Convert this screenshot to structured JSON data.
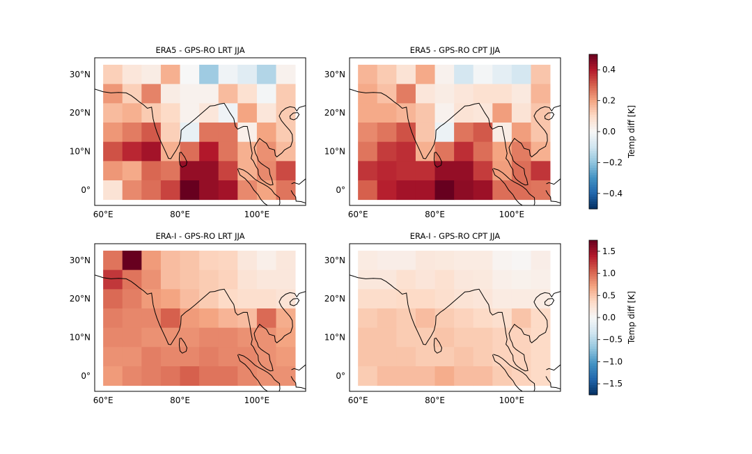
{
  "figure": {
    "colormap": [
      "#053061",
      "#2166ac",
      "#4393c3",
      "#92c5de",
      "#d1e5f0",
      "#f7f7f7",
      "#fddbc7",
      "#f4a582",
      "#d6604d",
      "#b2182b",
      "#67001f"
    ]
  },
  "chart_data": [
    {
      "type": "heatmap",
      "title": "ERA5 - GPS-RO LRT JJA",
      "x_ticks": [
        "60°E",
        "80°E",
        "100°E"
      ],
      "y_ticks": [
        "30°N",
        "20°N",
        "10°N",
        "0°"
      ],
      "x_centers_lon": [
        62.5,
        67.5,
        72.5,
        77.5,
        82.5,
        87.5,
        92.5,
        97.5,
        102.5,
        107.5
      ],
      "y_centers_lat": [
        30,
        25,
        20,
        15,
        10,
        5,
        0
      ],
      "clim": [
        -0.5,
        0.5
      ],
      "values": [
        [
          0.12,
          0.06,
          0.04,
          0.18,
          0.0,
          -0.18,
          -0.02,
          -0.06,
          -0.15,
          0.02
        ],
        [
          0.22,
          0.12,
          0.25,
          0.04,
          0.02,
          0.02,
          0.16,
          0.08,
          -0.01,
          0.13
        ],
        [
          0.16,
          0.18,
          0.13,
          0.1,
          0.02,
          0.06,
          -0.02,
          0.2,
          0.06,
          0.13
        ],
        [
          0.22,
          0.26,
          0.31,
          0.12,
          -0.04,
          0.27,
          0.27,
          0.03,
          0.2,
          0.13
        ],
        [
          0.32,
          0.38,
          0.42,
          0.18,
          0.28,
          0.4,
          0.27,
          0.18,
          0.23,
          0.16
        ],
        [
          0.22,
          0.19,
          0.29,
          0.27,
          0.44,
          0.44,
          0.34,
          0.18,
          0.24,
          0.33
        ],
        [
          0.07,
          0.24,
          0.28,
          0.34,
          0.5,
          0.44,
          0.42,
          0.24,
          0.2,
          0.27
        ]
      ]
    },
    {
      "type": "heatmap",
      "title": "ERA5 - GPS-RO CPT JJA",
      "x_ticks": [
        "60°E",
        "80°E",
        "100°E"
      ],
      "y_ticks": [
        "30°N",
        "20°N",
        "10°N",
        "0°"
      ],
      "x_centers_lon": [
        62.5,
        67.5,
        72.5,
        77.5,
        82.5,
        87.5,
        92.5,
        97.5,
        102.5,
        107.5
      ],
      "y_centers_lat": [
        30,
        25,
        20,
        15,
        10,
        5,
        0
      ],
      "clim": [
        -0.5,
        0.5
      ],
      "values": [
        [
          0.17,
          0.13,
          0.07,
          0.19,
          0.02,
          -0.09,
          -0.01,
          -0.05,
          -0.09,
          0.14
        ],
        [
          0.19,
          0.15,
          0.26,
          0.06,
          0.04,
          0.06,
          0.08,
          0.08,
          0.05,
          0.17
        ],
        [
          0.19,
          0.19,
          0.17,
          0.14,
          0.02,
          0.07,
          0.06,
          0.21,
          0.07,
          0.14
        ],
        [
          0.24,
          0.27,
          0.32,
          0.14,
          -0.03,
          0.27,
          0.31,
          0.04,
          0.21,
          0.14
        ],
        [
          0.27,
          0.35,
          0.37,
          0.18,
          0.27,
          0.37,
          0.28,
          0.2,
          0.26,
          0.18
        ],
        [
          0.36,
          0.38,
          0.37,
          0.37,
          0.44,
          0.44,
          0.35,
          0.21,
          0.28,
          0.36
        ],
        [
          0.3,
          0.39,
          0.42,
          0.42,
          0.5,
          0.45,
          0.43,
          0.28,
          0.28,
          0.27
        ]
      ]
    },
    {
      "type": "heatmap",
      "title": "ERA-I - GPS-RO LRT JJA",
      "x_ticks": [
        "60°E",
        "80°E",
        "100°E"
      ],
      "y_ticks": [
        "30°N",
        "20°N",
        "10°N",
        "0°"
      ],
      "x_centers_lon": [
        62.5,
        67.5,
        72.5,
        77.5,
        82.5,
        87.5,
        92.5,
        97.5,
        102.5,
        107.5
      ],
      "y_centers_lat": [
        30,
        25,
        20,
        15,
        10,
        5,
        0
      ],
      "clim": [
        -1.75,
        1.75
      ],
      "values": [
        [
          0.95,
          1.75,
          0.75,
          0.55,
          0.5,
          0.4,
          0.38,
          0.2,
          0.1,
          0.2
        ],
        [
          1.25,
          0.95,
          0.8,
          0.55,
          0.5,
          0.45,
          0.4,
          0.25,
          0.2,
          0.2
        ],
        [
          1.0,
          0.9,
          0.75,
          0.7,
          0.55,
          0.45,
          0.35,
          0.3,
          0.3,
          0.25
        ],
        [
          0.9,
          0.85,
          0.85,
          1.05,
          0.75,
          0.7,
          0.6,
          0.55,
          1.0,
          0.65
        ],
        [
          0.85,
          0.85,
          0.8,
          0.8,
          0.8,
          0.85,
          0.85,
          0.8,
          0.8,
          0.7
        ],
        [
          0.8,
          0.8,
          0.9,
          0.85,
          0.85,
          0.9,
          0.85,
          0.85,
          0.8,
          0.75
        ],
        [
          0.75,
          0.85,
          0.9,
          0.95,
          1.05,
          0.95,
          0.95,
          0.85,
          0.8,
          0.8
        ]
      ]
    },
    {
      "type": "heatmap",
      "title": "ERA-I - GPS-RO CPT JJA",
      "x_ticks": [
        "60°E",
        "80°E",
        "100°E"
      ],
      "y_ticks": [
        "30°N",
        "20°N",
        "10°N",
        "0°"
      ],
      "x_centers_lon": [
        62.5,
        67.5,
        72.5,
        77.5,
        82.5,
        87.5,
        92.5,
        97.5,
        102.5,
        107.5
      ],
      "y_centers_lat": [
        30,
        25,
        20,
        15,
        10,
        5,
        0
      ],
      "clim": [
        -1.75,
        1.75
      ],
      "values": [
        [
          0.15,
          0.12,
          0.12,
          0.2,
          0.18,
          0.15,
          0.15,
          0.05,
          0.02,
          0.12
        ],
        [
          0.2,
          0.2,
          0.28,
          0.22,
          0.28,
          0.2,
          0.18,
          0.1,
          0.08,
          0.1
        ],
        [
          0.32,
          0.32,
          0.35,
          0.35,
          0.3,
          0.25,
          0.22,
          0.15,
          0.15,
          0.15
        ],
        [
          0.45,
          0.5,
          0.45,
          0.55,
          0.45,
          0.4,
          0.35,
          0.3,
          0.5,
          0.35
        ],
        [
          0.5,
          0.5,
          0.45,
          0.45,
          0.5,
          0.45,
          0.45,
          0.4,
          0.4,
          0.35
        ],
        [
          0.5,
          0.5,
          0.5,
          0.45,
          0.45,
          0.5,
          0.45,
          0.4,
          0.4,
          0.35
        ],
        [
          0.45,
          0.55,
          0.55,
          0.55,
          0.65,
          0.55,
          0.55,
          0.45,
          0.4,
          0.35
        ]
      ]
    }
  ],
  "colorbars": [
    {
      "label": "Temp diff [K]",
      "clim": [
        -0.5,
        0.5
      ],
      "ticks": [
        "0.4",
        "0.2",
        "0.0",
        "−0.2",
        "−0.4"
      ],
      "tick_values": [
        0.4,
        0.2,
        0.0,
        -0.2,
        -0.4
      ]
    },
    {
      "label": "Temp diff [K]",
      "clim": [
        -1.75,
        1.75
      ],
      "ticks": [
        "1.5",
        "1.0",
        "0.5",
        "0.0",
        "−0.5",
        "−1.0",
        "−1.5"
      ],
      "tick_values": [
        1.5,
        1.0,
        0.5,
        0.0,
        -0.5,
        -1.0,
        -1.5
      ]
    }
  ]
}
